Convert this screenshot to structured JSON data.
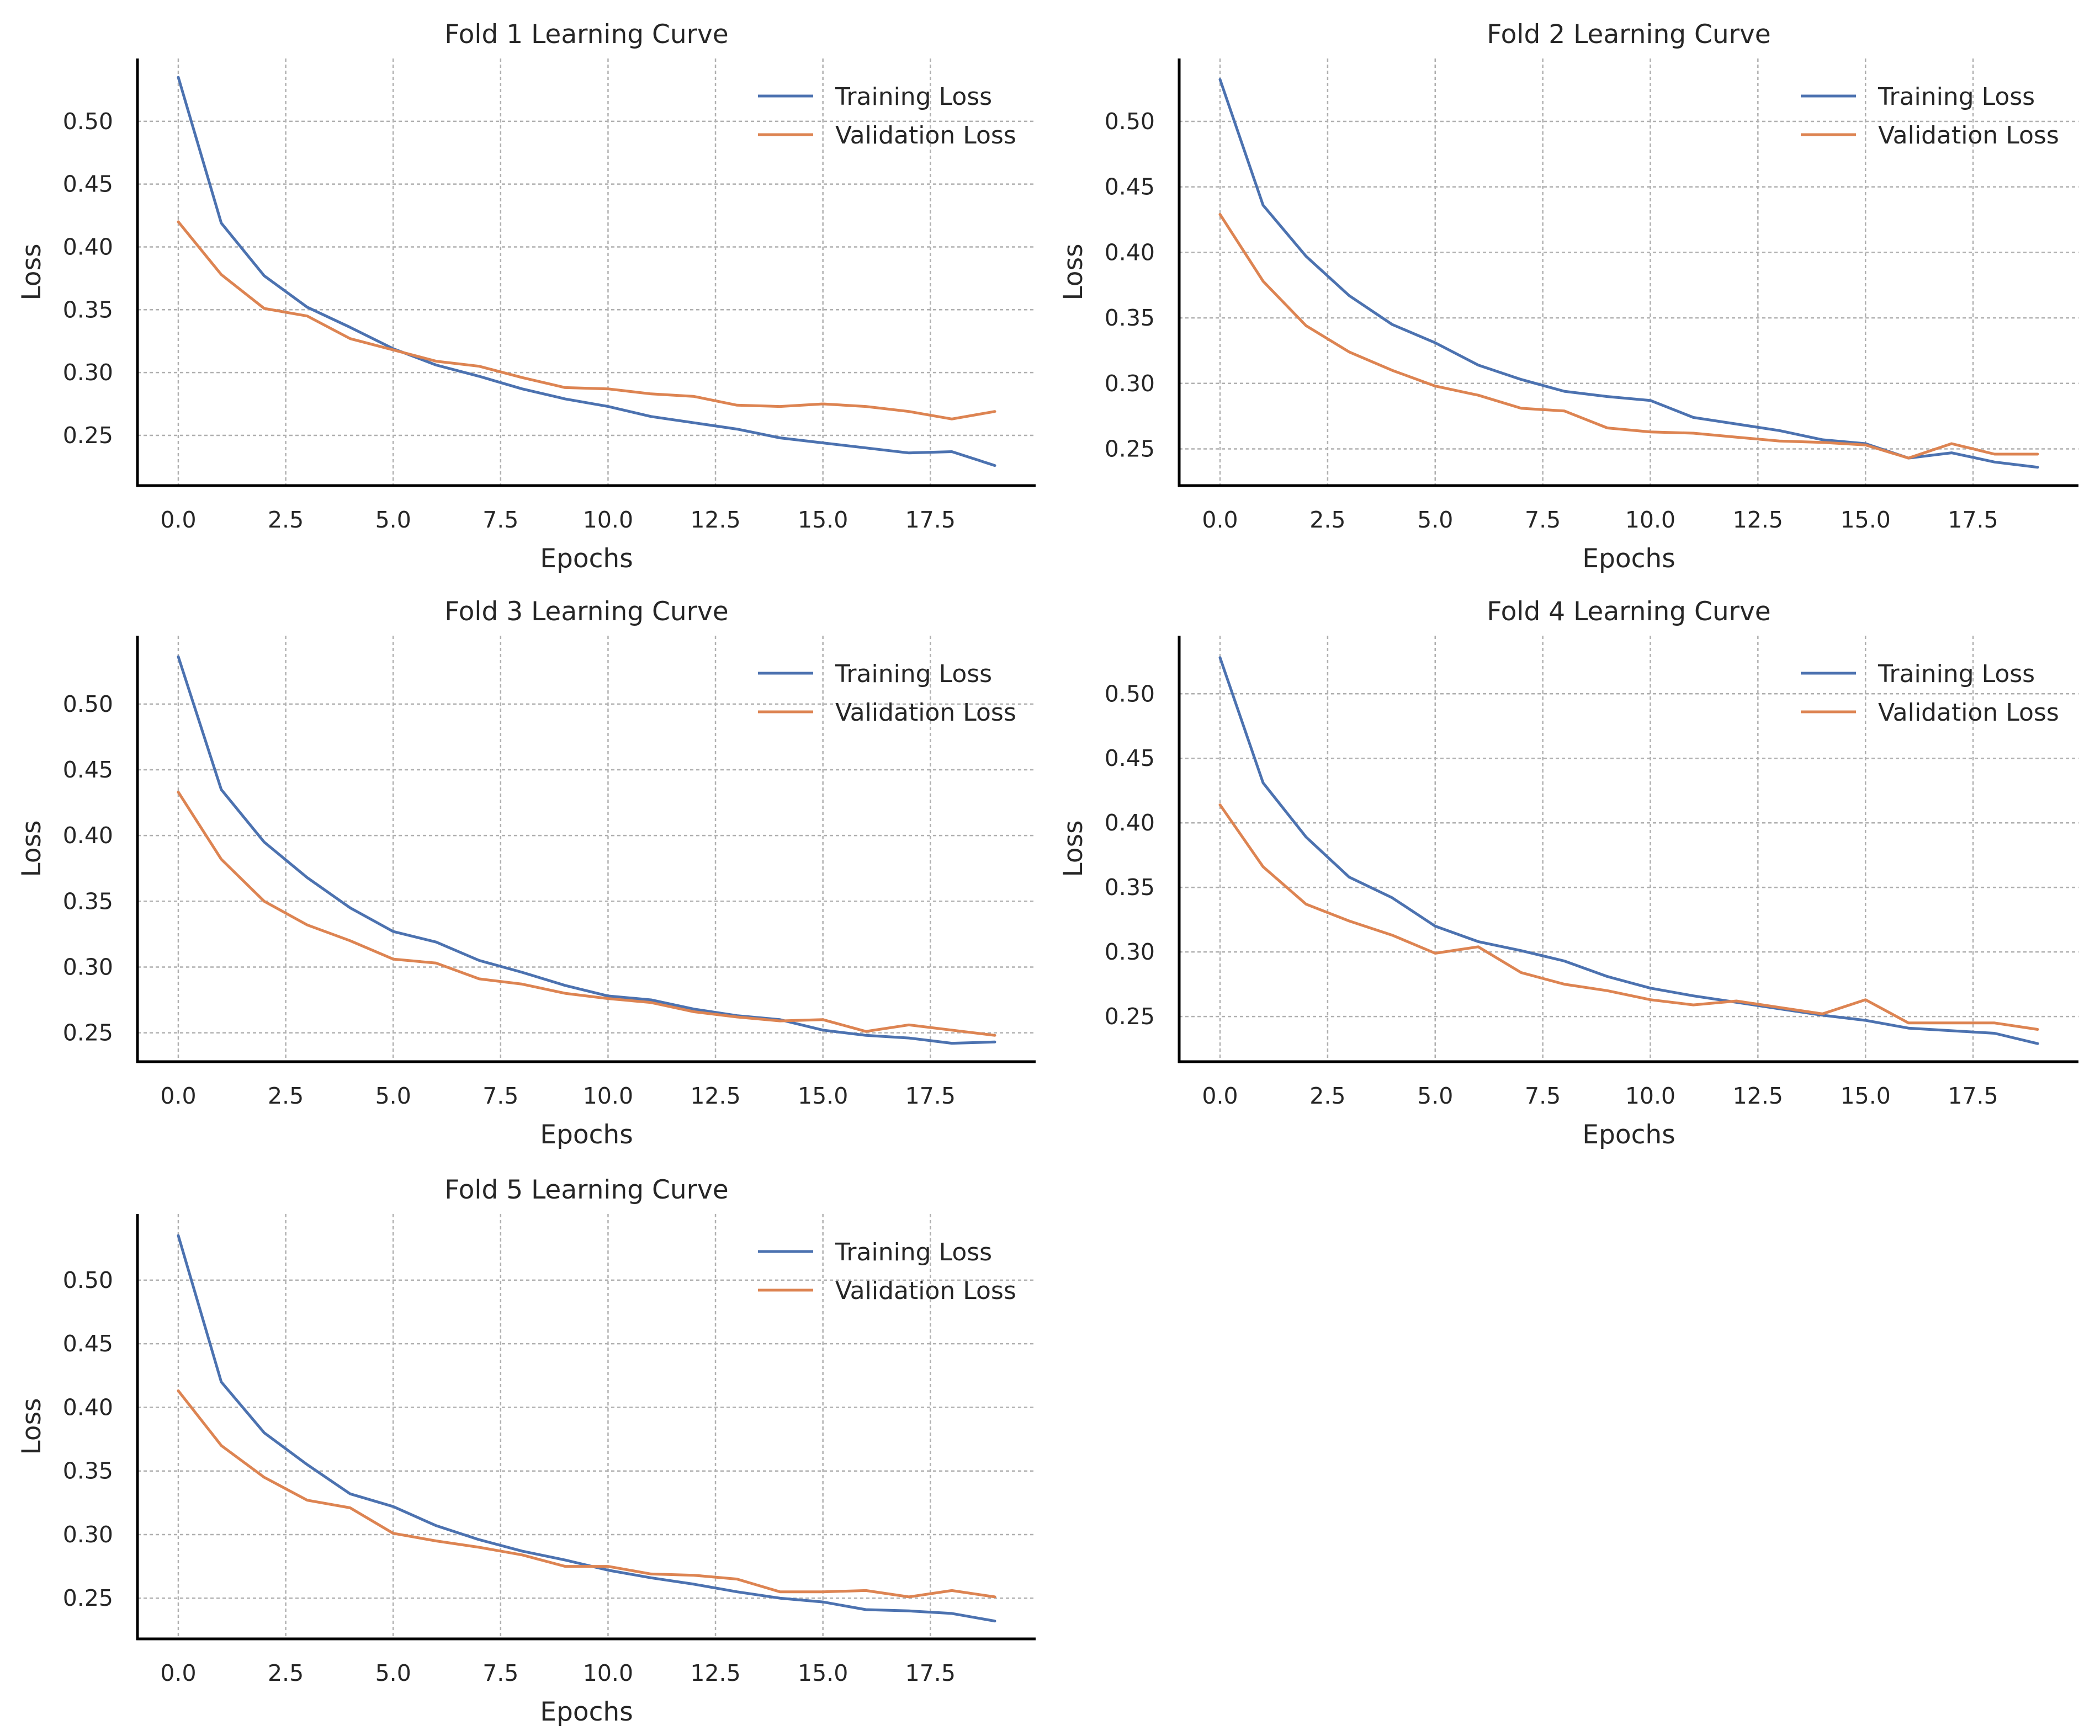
{
  "colors": {
    "training": "#4c72b0",
    "validation": "#dd8452"
  },
  "chart_data": [
    {
      "type": "line",
      "title": "Fold 1 Learning Curve",
      "xlabel": "Epochs",
      "ylabel": "Loss",
      "xlim": [
        -0.95,
        19.95
      ],
      "ylim": [
        0.21,
        0.55
      ],
      "xticks": [
        0,
        2.5,
        5,
        7.5,
        10,
        12.5,
        15,
        17.5
      ],
      "xtick_labels": [
        "0.0",
        "2.5",
        "5.0",
        "7.5",
        "10.0",
        "12.5",
        "15.0",
        "17.5"
      ],
      "yticks": [
        0.25,
        0.3,
        0.35,
        0.4,
        0.45,
        0.5
      ],
      "ytick_labels": [
        "0.25",
        "0.30",
        "0.35",
        "0.40",
        "0.45",
        "0.50"
      ],
      "grid": true,
      "legend": "top-right",
      "x": [
        0,
        1,
        2,
        3,
        4,
        5,
        6,
        7,
        8,
        9,
        10,
        11,
        12,
        13,
        14,
        15,
        16,
        17,
        18,
        19
      ],
      "series": [
        {
          "name": "Training Loss",
          "color": "#4c72b0",
          "values": [
            0.535,
            0.419,
            0.377,
            0.352,
            0.336,
            0.319,
            0.306,
            0.297,
            0.287,
            0.279,
            0.273,
            0.265,
            0.26,
            0.255,
            0.248,
            0.244,
            0.24,
            0.236,
            0.237,
            0.226
          ]
        },
        {
          "name": "Validation Loss",
          "color": "#dd8452",
          "values": [
            0.42,
            0.378,
            0.351,
            0.345,
            0.327,
            0.318,
            0.309,
            0.305,
            0.296,
            0.288,
            0.287,
            0.283,
            0.281,
            0.274,
            0.273,
            0.275,
            0.273,
            0.269,
            0.263,
            0.269
          ]
        }
      ]
    },
    {
      "type": "line",
      "title": "Fold 2 Learning Curve",
      "xlabel": "Epochs",
      "ylabel": "Loss",
      "xlim": [
        -0.95,
        19.95
      ],
      "ylim": [
        0.222,
        0.548
      ],
      "xticks": [
        0,
        2.5,
        5,
        7.5,
        10,
        12.5,
        15,
        17.5
      ],
      "xtick_labels": [
        "0.0",
        "2.5",
        "5.0",
        "7.5",
        "10.0",
        "12.5",
        "15.0",
        "17.5"
      ],
      "yticks": [
        0.25,
        0.3,
        0.35,
        0.4,
        0.45,
        0.5
      ],
      "ytick_labels": [
        "0.25",
        "0.30",
        "0.35",
        "0.40",
        "0.45",
        "0.50"
      ],
      "grid": true,
      "legend": "top-right",
      "x": [
        0,
        1,
        2,
        3,
        4,
        5,
        6,
        7,
        8,
        9,
        10,
        11,
        12,
        13,
        14,
        15,
        16,
        17,
        18,
        19
      ],
      "series": [
        {
          "name": "Training Loss",
          "color": "#4c72b0",
          "values": [
            0.532,
            0.436,
            0.397,
            0.367,
            0.345,
            0.331,
            0.314,
            0.303,
            0.294,
            0.29,
            0.287,
            0.274,
            0.269,
            0.264,
            0.257,
            0.254,
            0.243,
            0.247,
            0.24,
            0.236
          ]
        },
        {
          "name": "Validation Loss",
          "color": "#dd8452",
          "values": [
            0.429,
            0.378,
            0.344,
            0.324,
            0.31,
            0.298,
            0.291,
            0.281,
            0.279,
            0.266,
            0.263,
            0.262,
            0.259,
            0.256,
            0.255,
            0.253,
            0.243,
            0.254,
            0.246,
            0.246
          ]
        }
      ]
    },
    {
      "type": "line",
      "title": "Fold 3 Learning Curve",
      "xlabel": "Epochs",
      "ylabel": "Loss",
      "xlim": [
        -0.95,
        19.95
      ],
      "ylim": [
        0.228,
        0.552
      ],
      "xticks": [
        0,
        2.5,
        5,
        7.5,
        10,
        12.5,
        15,
        17.5
      ],
      "xtick_labels": [
        "0.0",
        "2.5",
        "5.0",
        "7.5",
        "10.0",
        "12.5",
        "15.0",
        "17.5"
      ],
      "yticks": [
        0.25,
        0.3,
        0.35,
        0.4,
        0.45,
        0.5
      ],
      "ytick_labels": [
        "0.25",
        "0.30",
        "0.35",
        "0.40",
        "0.45",
        "0.50"
      ],
      "grid": true,
      "legend": "top-right",
      "x": [
        0,
        1,
        2,
        3,
        4,
        5,
        6,
        7,
        8,
        9,
        10,
        11,
        12,
        13,
        14,
        15,
        16,
        17,
        18,
        19
      ],
      "series": [
        {
          "name": "Training Loss",
          "color": "#4c72b0",
          "values": [
            0.536,
            0.435,
            0.395,
            0.368,
            0.345,
            0.327,
            0.319,
            0.305,
            0.296,
            0.286,
            0.278,
            0.275,
            0.268,
            0.263,
            0.26,
            0.252,
            0.248,
            0.246,
            0.242,
            0.243
          ]
        },
        {
          "name": "Validation Loss",
          "color": "#dd8452",
          "values": [
            0.433,
            0.382,
            0.35,
            0.332,
            0.32,
            0.306,
            0.303,
            0.291,
            0.287,
            0.28,
            0.276,
            0.273,
            0.266,
            0.262,
            0.259,
            0.26,
            0.251,
            0.256,
            0.252,
            0.248
          ]
        }
      ]
    },
    {
      "type": "line",
      "title": "Fold 4 Learning Curve",
      "xlabel": "Epochs",
      "ylabel": "Loss",
      "xlim": [
        -0.95,
        19.95
      ],
      "ylim": [
        0.215,
        0.545
      ],
      "xticks": [
        0,
        2.5,
        5,
        7.5,
        10,
        12.5,
        15,
        17.5
      ],
      "xtick_labels": [
        "0.0",
        "2.5",
        "5.0",
        "7.5",
        "10.0",
        "12.5",
        "15.0",
        "17.5"
      ],
      "yticks": [
        0.25,
        0.3,
        0.35,
        0.4,
        0.45,
        0.5
      ],
      "ytick_labels": [
        "0.25",
        "0.30",
        "0.35",
        "0.40",
        "0.45",
        "0.50"
      ],
      "grid": true,
      "legend": "top-right",
      "x": [
        0,
        1,
        2,
        3,
        4,
        5,
        6,
        7,
        8,
        9,
        10,
        11,
        12,
        13,
        14,
        15,
        16,
        17,
        18,
        19
      ],
      "series": [
        {
          "name": "Training Loss",
          "color": "#4c72b0",
          "values": [
            0.528,
            0.431,
            0.389,
            0.358,
            0.342,
            0.32,
            0.308,
            0.301,
            0.293,
            0.281,
            0.272,
            0.266,
            0.261,
            0.256,
            0.251,
            0.247,
            0.241,
            0.239,
            0.237,
            0.229
          ]
        },
        {
          "name": "Validation Loss",
          "color": "#dd8452",
          "values": [
            0.414,
            0.366,
            0.337,
            0.324,
            0.313,
            0.299,
            0.304,
            0.284,
            0.275,
            0.27,
            0.263,
            0.259,
            0.262,
            0.257,
            0.252,
            0.263,
            0.245,
            0.245,
            0.245,
            0.24
          ]
        }
      ]
    },
    {
      "type": "line",
      "title": "Fold 5 Learning Curve",
      "xlabel": "Epochs",
      "ylabel": "Loss",
      "xlim": [
        -0.95,
        19.95
      ],
      "ylim": [
        0.218,
        0.552
      ],
      "xticks": [
        0,
        2.5,
        5,
        7.5,
        10,
        12.5,
        15,
        17.5
      ],
      "xtick_labels": [
        "0.0",
        "2.5",
        "5.0",
        "7.5",
        "10.0",
        "12.5",
        "15.0",
        "17.5"
      ],
      "yticks": [
        0.25,
        0.3,
        0.35,
        0.4,
        0.45,
        0.5
      ],
      "ytick_labels": [
        "0.25",
        "0.30",
        "0.35",
        "0.40",
        "0.45",
        "0.50"
      ],
      "grid": true,
      "legend": "top-right",
      "x": [
        0,
        1,
        2,
        3,
        4,
        5,
        6,
        7,
        8,
        9,
        10,
        11,
        12,
        13,
        14,
        15,
        16,
        17,
        18,
        19
      ],
      "series": [
        {
          "name": "Training Loss",
          "color": "#4c72b0",
          "values": [
            0.535,
            0.42,
            0.38,
            0.355,
            0.332,
            0.322,
            0.307,
            0.296,
            0.287,
            0.28,
            0.272,
            0.266,
            0.261,
            0.255,
            0.25,
            0.247,
            0.241,
            0.24,
            0.238,
            0.232
          ]
        },
        {
          "name": "Validation Loss",
          "color": "#dd8452",
          "values": [
            0.413,
            0.37,
            0.345,
            0.327,
            0.321,
            0.301,
            0.295,
            0.29,
            0.284,
            0.275,
            0.275,
            0.269,
            0.268,
            0.265,
            0.255,
            0.255,
            0.256,
            0.251,
            0.256,
            0.251
          ]
        }
      ]
    }
  ]
}
